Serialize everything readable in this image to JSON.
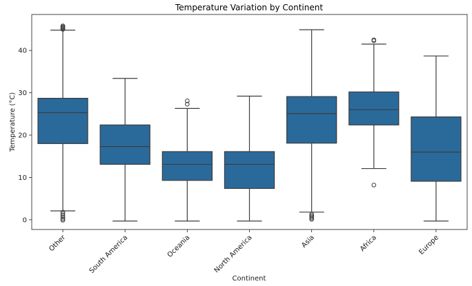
{
  "chart_data": {
    "type": "box",
    "title": "Temperature Variation by Continent",
    "xlabel": "Continent",
    "ylabel": "Temperature (°C)",
    "ylim": [
      -2.3,
      48.5
    ],
    "yticks": [
      0,
      10,
      20,
      30,
      40
    ],
    "grid": false,
    "box_color": "#2a6a9b",
    "line_color": "#3c3c3c",
    "categories": [
      "Other",
      "South America",
      "Oceania",
      "North America",
      "Asia",
      "Africa",
      "Europe"
    ],
    "boxes": [
      {
        "category": "Other",
        "whisker_low": 2.1,
        "q1": 18.0,
        "median": 25.3,
        "q3": 28.7,
        "whisker_high": 44.8,
        "outliers": [
          45.8,
          45.6,
          45.4,
          45.2,
          45.0,
          1.8,
          1.4,
          1.0,
          0.6,
          0.2,
          -0.1
        ]
      },
      {
        "category": "South America",
        "whisker_low": -0.3,
        "q1": 13.1,
        "median": 17.3,
        "q3": 22.4,
        "whisker_high": 33.4,
        "outliers": []
      },
      {
        "category": "Oceania",
        "whisker_low": -0.3,
        "q1": 9.3,
        "median": 13.1,
        "q3": 16.1,
        "whisker_high": 26.3,
        "outliers": [
          27.3,
          28.1
        ]
      },
      {
        "category": "North America",
        "whisker_low": -0.3,
        "q1": 7.4,
        "median": 13.1,
        "q3": 16.1,
        "whisker_high": 29.2,
        "outliers": []
      },
      {
        "category": "Asia",
        "whisker_low": 1.8,
        "q1": 18.1,
        "median": 25.1,
        "q3": 29.1,
        "whisker_high": 44.9,
        "outliers": [
          1.3,
          1.0,
          0.7,
          0.4,
          0.1
        ]
      },
      {
        "category": "Africa",
        "whisker_low": 12.1,
        "q1": 22.4,
        "median": 26.0,
        "q3": 30.2,
        "whisker_high": 41.5,
        "outliers": [
          42.3,
          42.5,
          8.2
        ]
      },
      {
        "category": "Europe",
        "whisker_low": -0.3,
        "q1": 9.1,
        "median": 16.0,
        "q3": 24.3,
        "whisker_high": 38.7,
        "outliers": []
      }
    ]
  }
}
